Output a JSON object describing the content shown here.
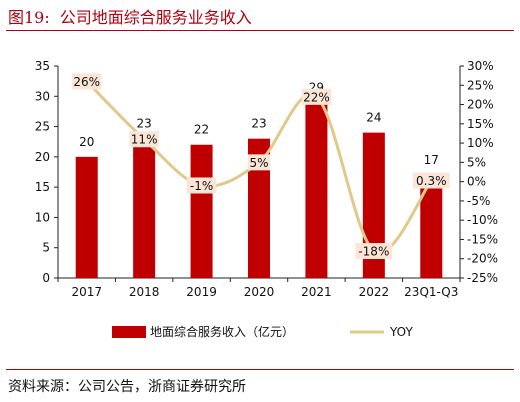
{
  "figure": {
    "number": "图19:",
    "title": "公司地面综合服务业务收入"
  },
  "source": "资料来源：公司公告，浙商证券研究所",
  "colors": {
    "bar": "#c00000",
    "line": "#e0c98a",
    "accent": "#b2000e",
    "label_bg": "#fbe5d6"
  },
  "chart_data": {
    "type": "bar+line",
    "categories": [
      "2017",
      "2018",
      "2019",
      "2020",
      "2021",
      "2022",
      "23Q1-Q3"
    ],
    "series": [
      {
        "name": "地面综合服务收入（亿元）",
        "type": "bar",
        "axis": "left",
        "values": [
          20,
          23,
          22,
          23,
          29,
          24,
          17
        ],
        "labels": [
          "20",
          "23",
          "22",
          "23",
          "29",
          "24",
          "17"
        ]
      },
      {
        "name": "YOY",
        "type": "line",
        "axis": "right",
        "values": [
          26,
          11,
          -1,
          5,
          22,
          -18,
          0.3
        ],
        "labels": [
          "26%",
          "11%",
          "-1%",
          "5%",
          "22%",
          "-18%",
          "0.3%"
        ]
      }
    ],
    "y_left": {
      "min": 0,
      "max": 35,
      "ticks": [
        "0",
        "5",
        "10",
        "15",
        "20",
        "25",
        "30",
        "35"
      ]
    },
    "y_right": {
      "min": -25,
      "max": 30,
      "ticks": [
        "-25%",
        "-20%",
        "-15%",
        "-10%",
        "-5%",
        "0%",
        "5%",
        "10%",
        "15%",
        "20%",
        "25%",
        "30%"
      ]
    },
    "legend": {
      "position": "bottom"
    },
    "grid": false
  }
}
